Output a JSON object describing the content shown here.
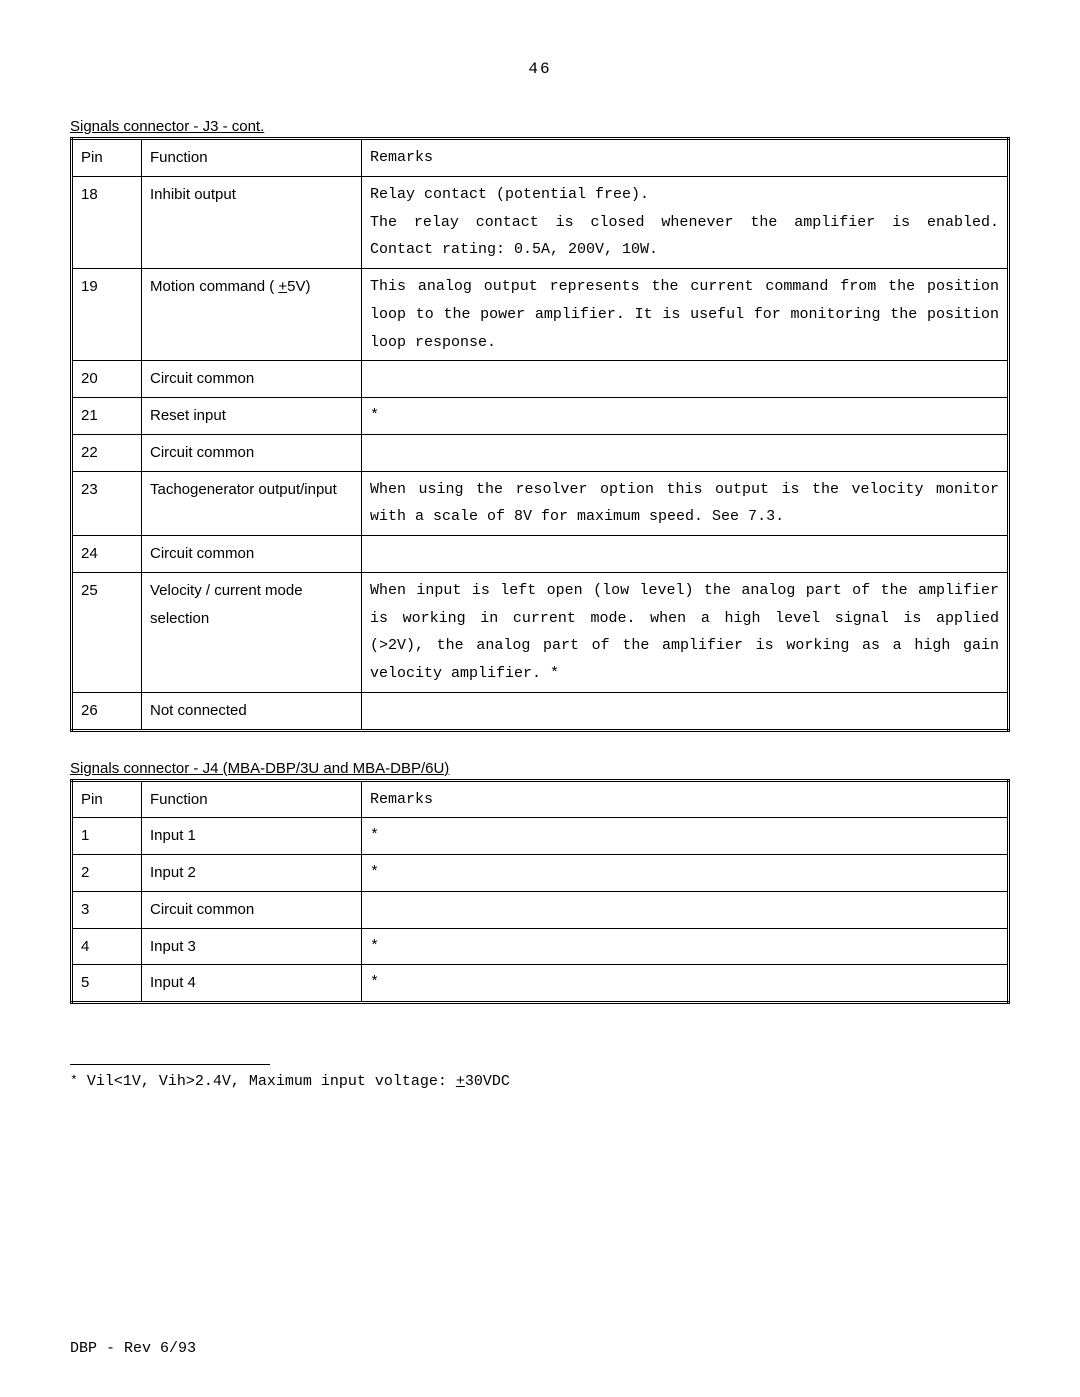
{
  "page_number": "46",
  "j3": {
    "caption": "Signals connector - J3 - cont.",
    "headers": {
      "pin": "Pin",
      "func": "Function",
      "remarks": "Remarks"
    },
    "rows": [
      {
        "pin": "18",
        "func": "Inhibit output",
        "remarks_l1": "Relay contact (potential free).",
        "remarks_l2": "The relay contact is closed whenever the amplifier is enabled. Contact rating: 0.5A, 200V, 10W."
      },
      {
        "pin": "19",
        "func_pre": "Motion command (   ",
        "func_pm": "+",
        "func_post": "5V)",
        "remarks": "This analog output represents the current command from the position loop to the power amplifier. It is useful for monitoring the position loop response."
      },
      {
        "pin": "20",
        "func": "Circuit common",
        "remarks": ""
      },
      {
        "pin": "21",
        "func": "Reset input",
        "remarks": "*"
      },
      {
        "pin": "22",
        "func": "Circuit common",
        "remarks": ""
      },
      {
        "pin": "23",
        "func": "Tachogenerator output/input",
        "remarks": "When using the resolver option this output is the velocity monitor with a scale of 8V for maximum speed. See 7.3."
      },
      {
        "pin": "24",
        "func": "Circuit common",
        "remarks": ""
      },
      {
        "pin": "25",
        "func": "Velocity / current mode selection",
        "remarks": "When input is left open (low level) the analog part of the amplifier is working in current mode. when a high level signal is applied (>2V), the analog part of the amplifier is working as a high gain velocity amplifier. *"
      },
      {
        "pin": "26",
        "func": "Not connected",
        "remarks": ""
      }
    ]
  },
  "j4": {
    "caption": "Signals connector - J4 (MBA-DBP/3U and MBA-DBP/6U)",
    "headers": {
      "pin": "Pin",
      "func": "Function",
      "remarks": "Remarks"
    },
    "rows": [
      {
        "pin": "1",
        "func": "Input 1",
        "remarks": "*"
      },
      {
        "pin": "2",
        "func": "Input 2",
        "remarks": "*"
      },
      {
        "pin": "3",
        "func": "Circuit common",
        "remarks": ""
      },
      {
        "pin": "4",
        "func": "Input 3",
        "remarks": "*"
      },
      {
        "pin": "5",
        "func": "Input 4",
        "remarks": "*"
      }
    ]
  },
  "footnote": {
    "star": "*",
    "pre": "  Vil<1V,  Vih>2.4V,  Maximum input voltage: ",
    "pm": "+",
    "post": "30VDC"
  },
  "footer": "DBP - Rev 6/93"
}
